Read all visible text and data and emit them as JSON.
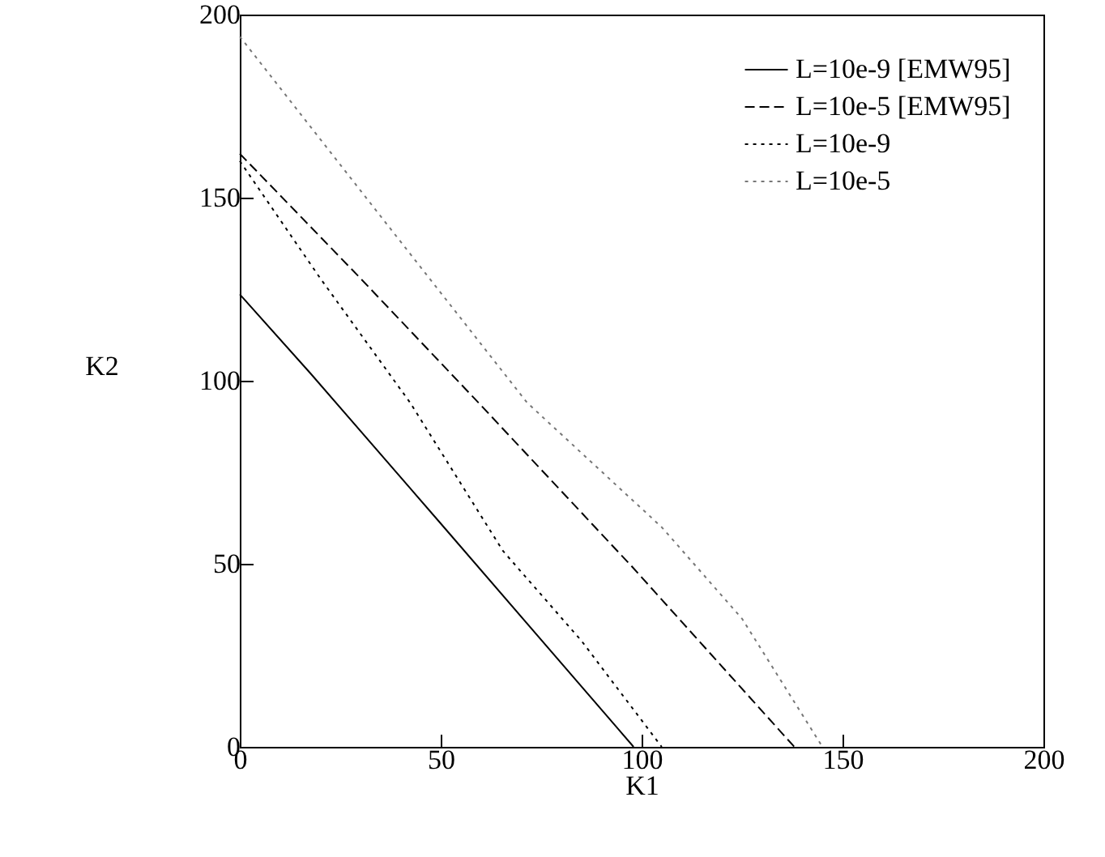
{
  "chart_data": {
    "type": "line",
    "xlabel": "K1",
    "ylabel": "K2",
    "xlim": [
      0,
      200
    ],
    "ylim": [
      0,
      200
    ],
    "xticks": [
      0,
      50,
      100,
      150,
      200
    ],
    "yticks": [
      0,
      50,
      100,
      150,
      200
    ],
    "grid": false,
    "legend": "top right",
    "marker": "none",
    "series": [
      {
        "name": "L=10e-9 [EMW95]",
        "color": "#000000",
        "line_style": "solid",
        "x": [
          0,
          17.6,
          50,
          98
        ],
        "values": [
          123.6,
          102,
          61,
          0
        ]
      },
      {
        "name": "L=10e-5 [EMW95]",
        "color": "#000000",
        "line_style": "dashed",
        "x": [
          0,
          30,
          59.4,
          97.8,
          138
        ],
        "values": [
          162,
          128,
          94,
          49,
          0
        ]
      },
      {
        "name": "L=10e-9",
        "color": "#000000",
        "line_style": "dotted",
        "x": [
          0,
          20,
          42.4,
          65.5,
          85,
          105
        ],
        "values": [
          160,
          128,
          94,
          53.5,
          29,
          0
        ]
      },
      {
        "name": "L=10e-5",
        "color": "#777777",
        "line_style": "dotted",
        "x": [
          0,
          40,
          71.5,
          105,
          125,
          145
        ],
        "values": [
          194,
          138,
          94,
          60,
          35,
          0
        ]
      }
    ]
  }
}
